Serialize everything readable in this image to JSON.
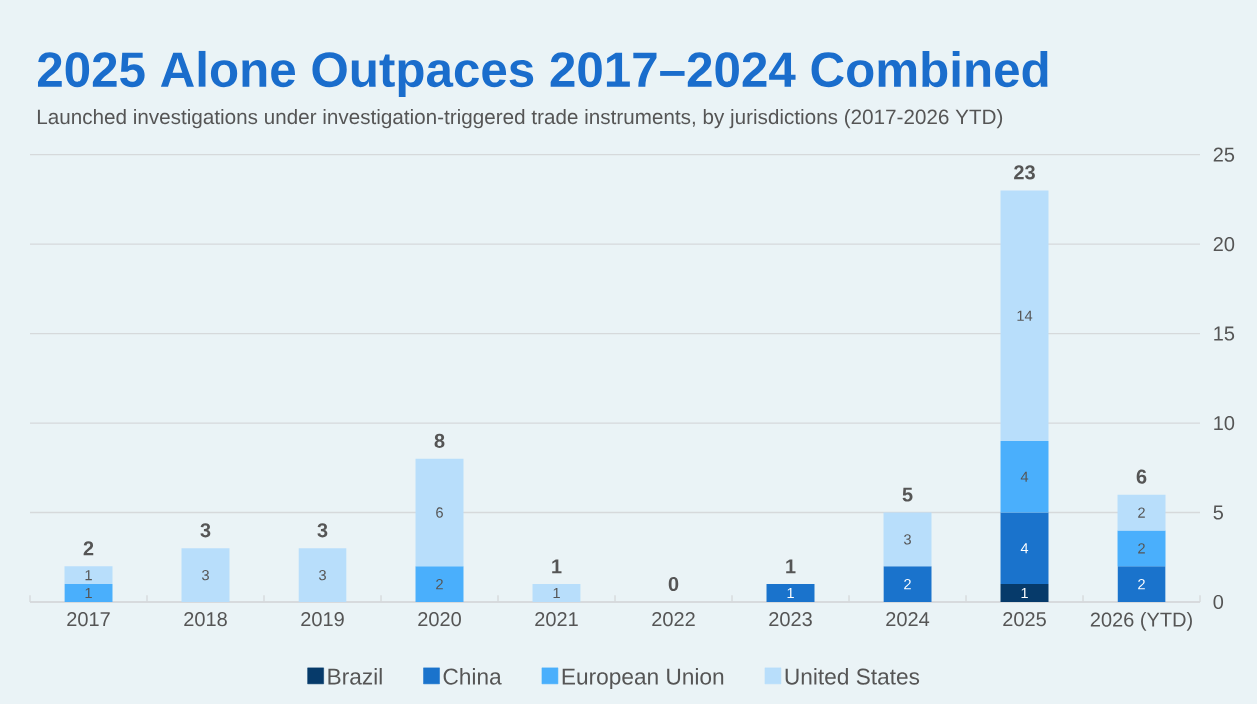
{
  "chart_data": {
    "type": "bar",
    "title": "2025 Alone Outpaces 2017–2024 Combined",
    "subtitle": "Launched investigations under investigation-triggered trade instruments, by jurisdictions (2017-2026 YTD)",
    "categories": [
      "2017",
      "2018",
      "2019",
      "2020",
      "2021",
      "2022",
      "2023",
      "2024",
      "2025",
      "2026 (YTD)"
    ],
    "stacked": true,
    "series": [
      {
        "name": "Brazil",
        "color": "#063a6a",
        "values": [
          null,
          null,
          null,
          null,
          null,
          null,
          null,
          null,
          1,
          null
        ]
      },
      {
        "name": "China",
        "color": "#1a73cc",
        "values": [
          null,
          null,
          null,
          null,
          null,
          null,
          1,
          2,
          4,
          2
        ]
      },
      {
        "name": "European Union",
        "color": "#4aaffc",
        "values": [
          1,
          null,
          null,
          2,
          null,
          null,
          null,
          null,
          4,
          2
        ]
      },
      {
        "name": "United States",
        "color": "#b8defb",
        "values": [
          1,
          3,
          3,
          6,
          1,
          null,
          null,
          3,
          14,
          2
        ]
      }
    ],
    "totals": [
      "2",
      "3",
      "3",
      "8",
      "1",
      "0",
      "1",
      "5",
      "23",
      "6"
    ],
    "data_labels": true,
    "ylim": [
      0,
      25
    ],
    "yticks": [
      0,
      5,
      10,
      15,
      20,
      25
    ],
    "grid": "y",
    "legend": "bottom"
  }
}
